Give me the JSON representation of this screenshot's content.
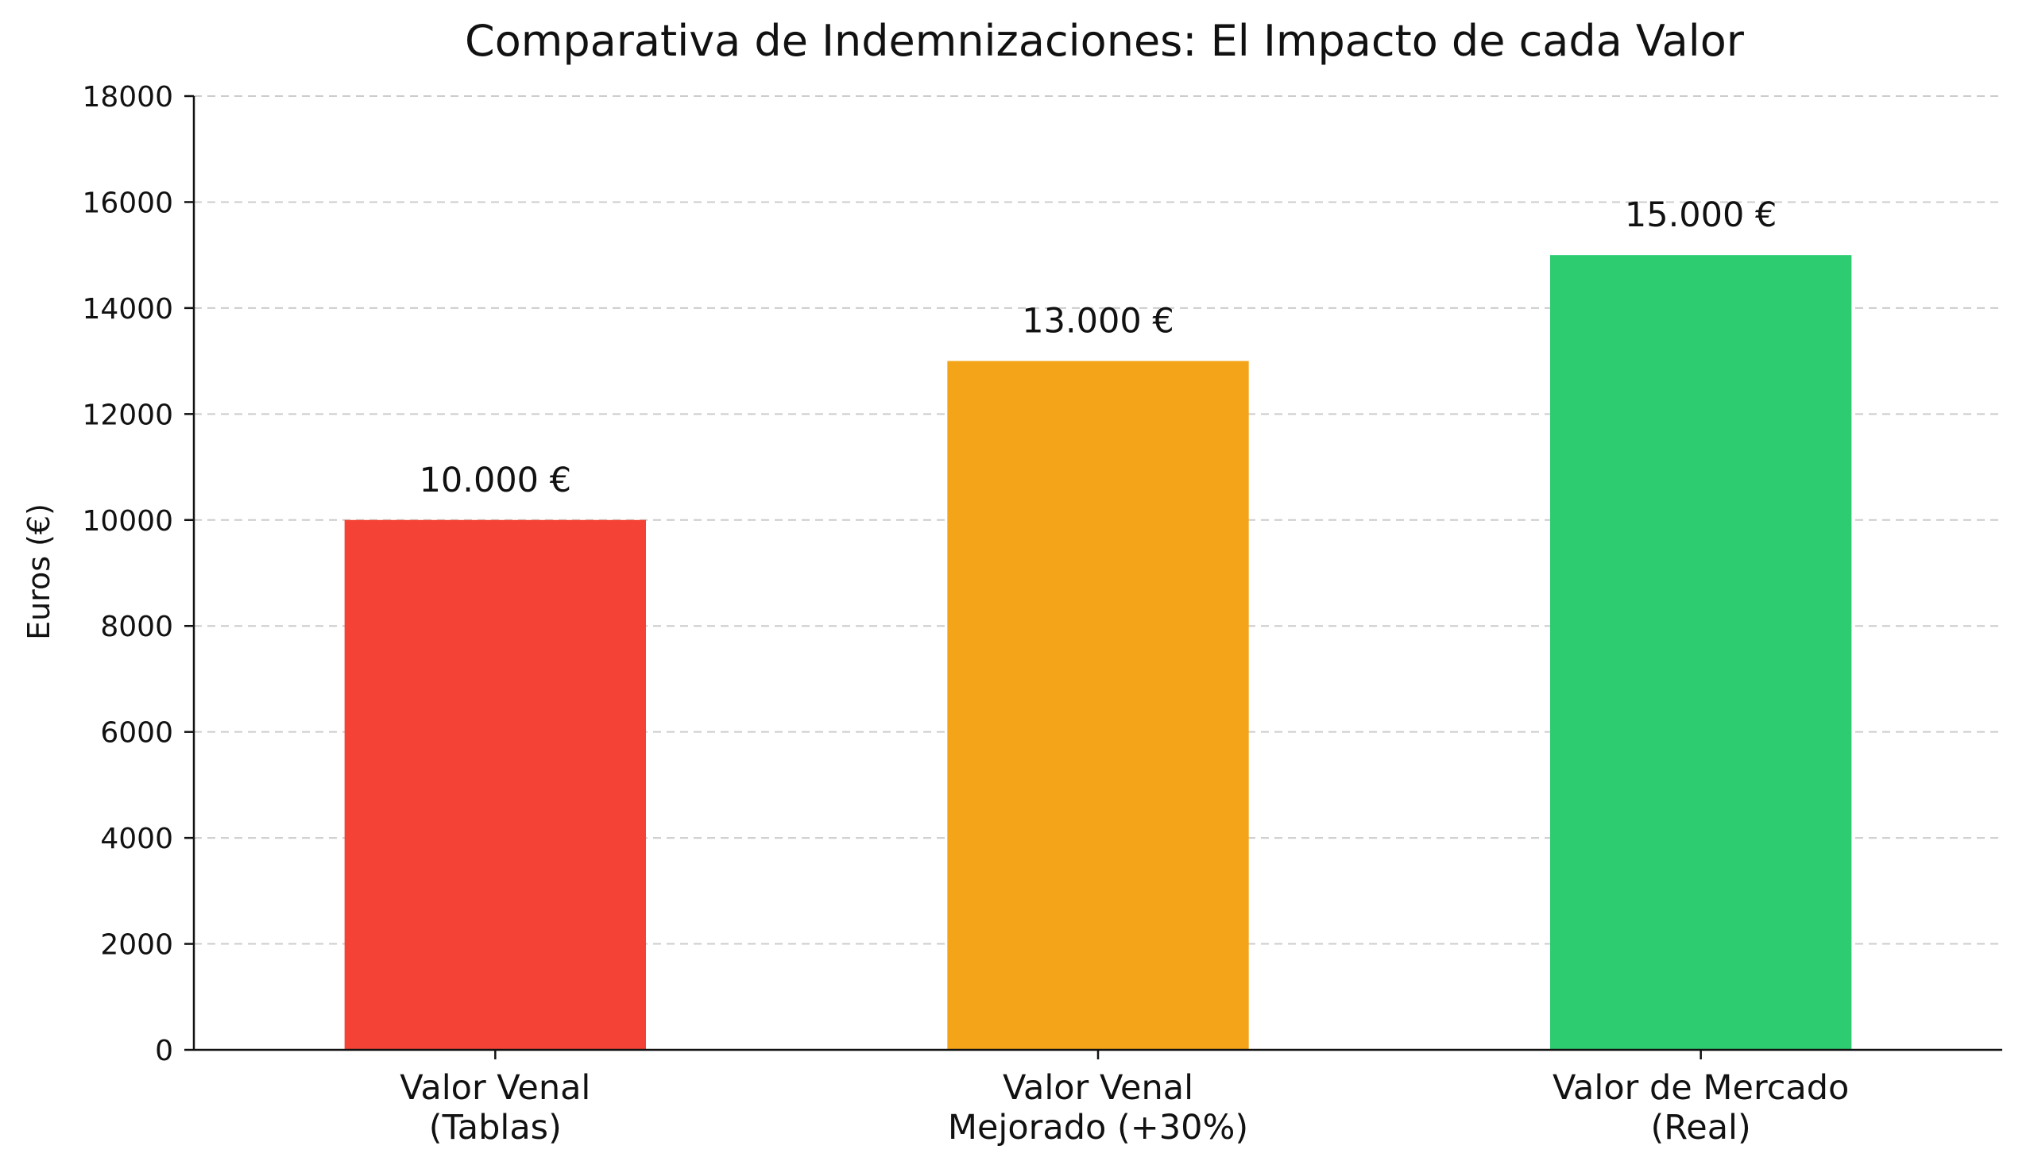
{
  "chart_data": {
    "type": "bar",
    "title": "Comparativa de Indemnizaciones: El Impacto de cada Valor",
    "xlabel": "",
    "ylabel": "Euros (€)",
    "categories": [
      [
        "Valor Venal",
        "(Tablas)"
      ],
      [
        "Valor Venal",
        "Mejorado (+30%)"
      ],
      [
        "Valor de Mercado",
        "(Real)"
      ]
    ],
    "values": [
      10000,
      13000,
      15000
    ],
    "value_labels": [
      "10.000 €",
      "13.000 €",
      "15.000 €"
    ],
    "colors": [
      "#f44336",
      "#f4a418",
      "#2ecc71"
    ],
    "ylim": [
      0,
      18000
    ],
    "yticks": [
      0,
      2000,
      4000,
      6000,
      8000,
      10000,
      12000,
      14000,
      16000,
      18000
    ],
    "grid": "horizontal-dashed",
    "legend": "none"
  }
}
